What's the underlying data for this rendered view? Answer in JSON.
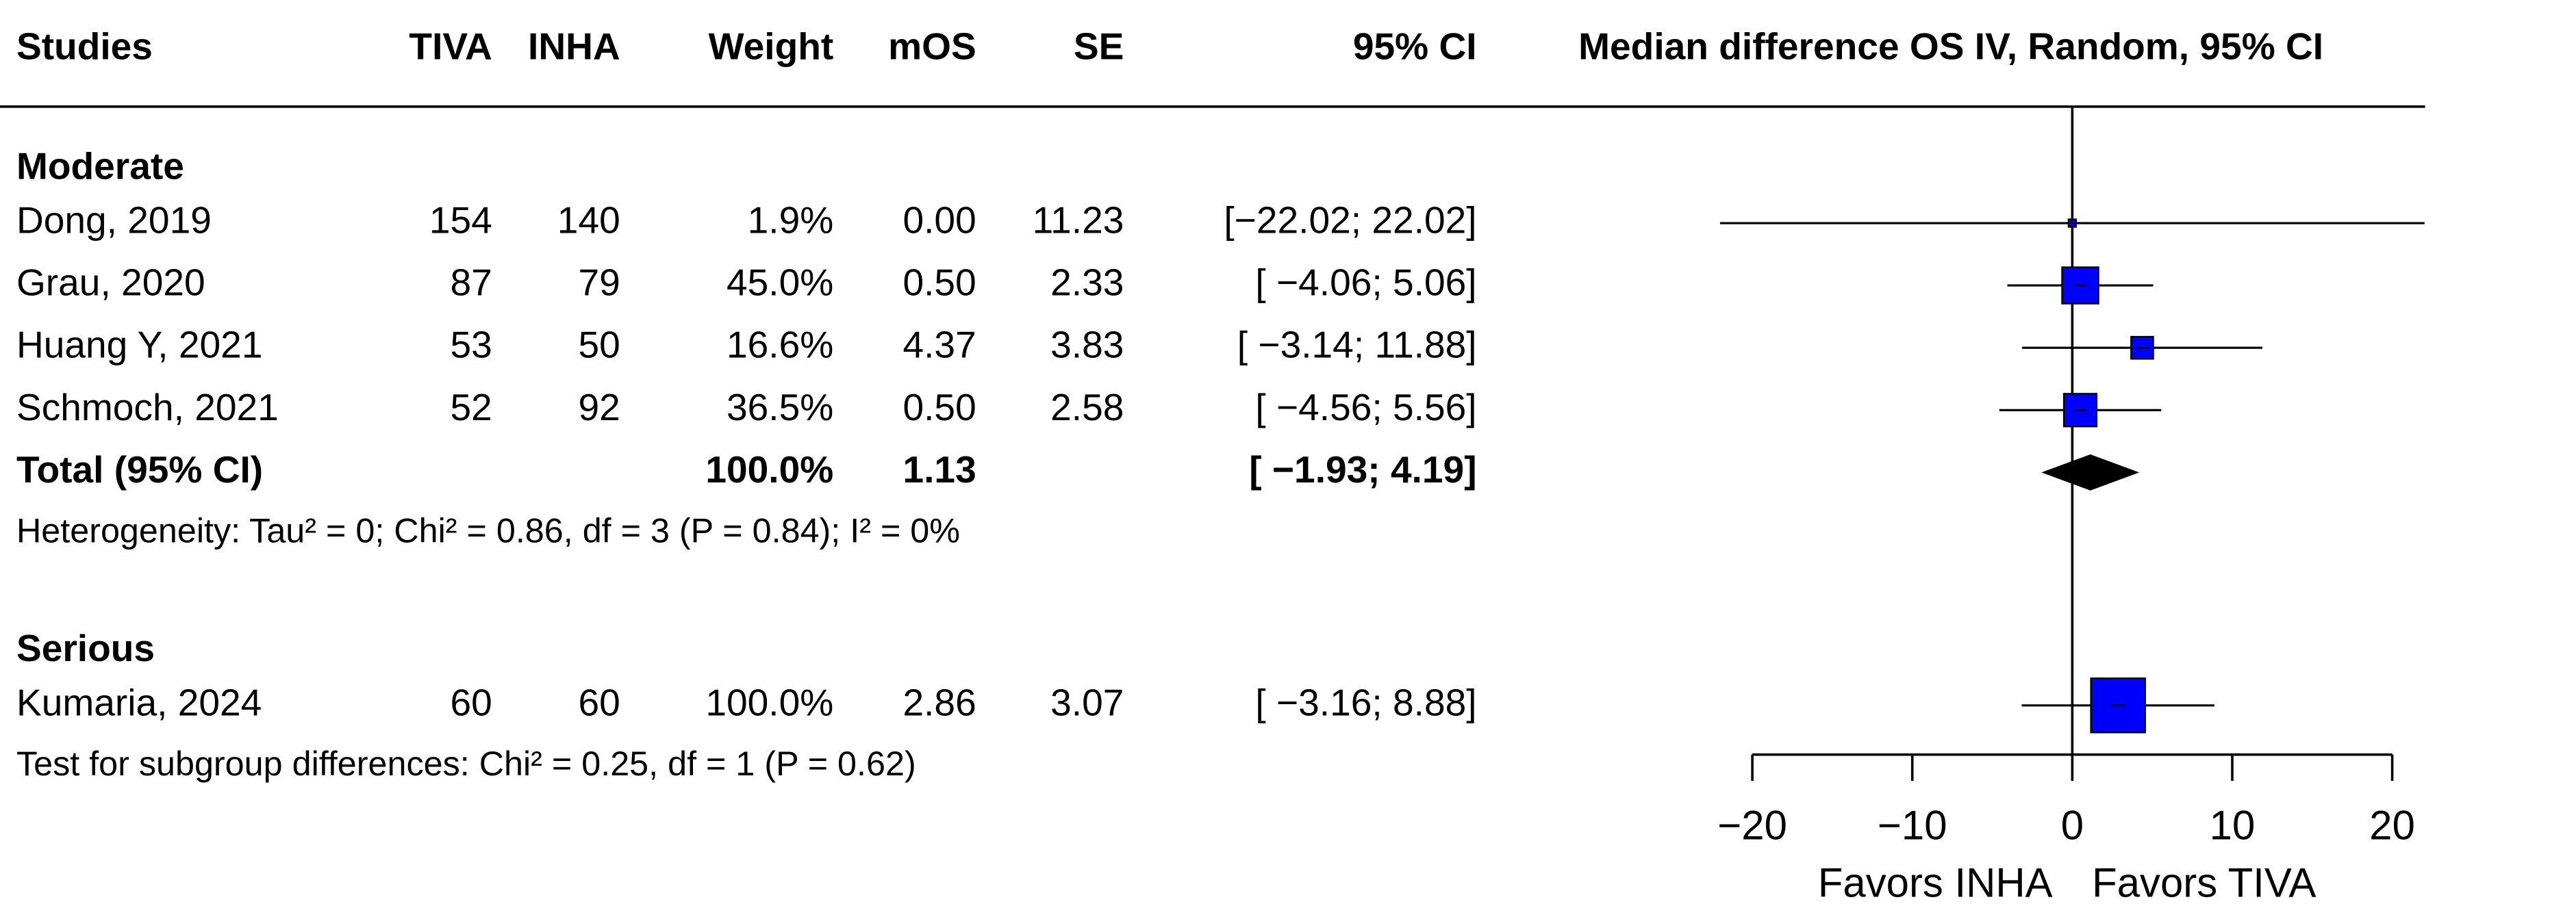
{
  "chart_data": {
    "type": "forest",
    "columns": [
      "Studies",
      "TIVA",
      "INHA",
      "Weight",
      "mOS",
      "SE",
      "95% CI"
    ],
    "plot_title": "Median difference OS IV, Random, 95% CI",
    "groups": [
      {
        "name": "Moderate",
        "studies": [
          {
            "name": "Dong, 2019",
            "tiva": 154,
            "inha": 140,
            "weight": {
              "value": 1.9,
              "label": "1.9%"
            },
            "mos": {
              "value": 0,
              "label": "0.00"
            },
            "se": 11.23,
            "lower": -22.02,
            "upper": 22.02,
            "ci_label": "[−22.02; 22.02]"
          },
          {
            "name": "Grau, 2020",
            "tiva": 87,
            "inha": 79,
            "weight": {
              "value": 45,
              "label": "45.0%"
            },
            "mos": {
              "value": 0.5,
              "label": "0.50"
            },
            "se": 2.33,
            "lower": -4.06,
            "upper": 5.06,
            "ci_label": "[ −4.06;  5.06]"
          },
          {
            "name": "Huang Y, 2021",
            "tiva": 53,
            "inha": 50,
            "weight": {
              "value": 16.6,
              "label": "16.6%"
            },
            "mos": 4.37,
            "se": 3.83,
            "lower": -3.14,
            "upper": 11.88,
            "ci_label": "[ −3.14; 11.88]"
          },
          {
            "name": "Schmoch, 2021",
            "tiva": 52,
            "inha": 92,
            "weight": {
              "value": 36.5,
              "label": "36.5%"
            },
            "mos": {
              "value": 0.5,
              "label": "0.50"
            },
            "se": 2.58,
            "lower": -4.56,
            "upper": 5.56,
            "ci_label": "[ −4.56;  5.56]"
          }
        ],
        "total": {
          "name": "Total (95% CI)",
          "weight": {
            "value": 100,
            "label": "100.0%"
          },
          "mos": 1.13,
          "lower": -1.93,
          "upper": 4.19,
          "ci_label": "[ −1.93;  4.19]"
        },
        "heterogeneity": "Heterogeneity: Tau² = 0; Chi² = 0.86, df = 3 (P = 0.84); I² = 0%"
      },
      {
        "name": "Serious",
        "studies": [
          {
            "name": "Kumaria, 2024",
            "tiva": 60,
            "inha": 60,
            "weight": {
              "value": 100,
              "label": "100.0%"
            },
            "mos": 2.86,
            "se": 3.07,
            "lower": -3.16,
            "upper": 8.88,
            "ci_label": "[ −3.16;  8.88]"
          }
        ]
      }
    ],
    "subgroup_test": "Test for subgroup differences: Chi² = 0.25, df = 1 (P = 0.62)",
    "xlim": [
      -20,
      20
    ],
    "xticks": [
      {
        "value": -20,
        "label": "−20"
      },
      {
        "value": -10,
        "label": "−10"
      },
      0,
      10,
      20
    ],
    "xlabel_left": "Favors INHA",
    "xlabel_right": "Favors TIVA",
    "box_color": "#0000ff"
  }
}
